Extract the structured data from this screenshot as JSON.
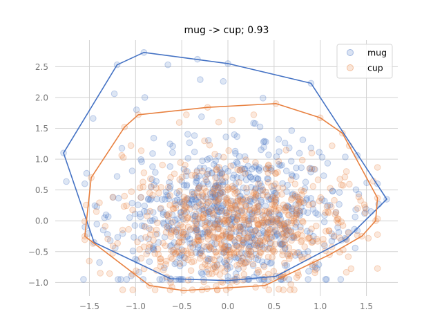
{
  "chart_data": {
    "type": "scatter",
    "title": "mug -> cup; 0.93",
    "xlabel": "",
    "ylabel": "",
    "xlim": [
      -1.87,
      1.84
    ],
    "ylim": [
      -1.22,
      2.93
    ],
    "xticks": [
      -1.5,
      -1.0,
      -0.5,
      0.0,
      0.5,
      1.0,
      1.5
    ],
    "xtick_labels": [
      "−1.5",
      "−1.0",
      "−0.5",
      "0.0",
      "0.5",
      "1.0",
      "1.5"
    ],
    "yticks": [
      -1.0,
      -0.5,
      0.0,
      0.5,
      1.0,
      1.5,
      2.0,
      2.5
    ],
    "ytick_labels": [
      "−1.0",
      "−0.5",
      "0.0",
      "0.5",
      "1.0",
      "1.5",
      "2.0",
      "2.5"
    ],
    "grid": true,
    "legend_position": "upper right",
    "legend": [
      "mug",
      "cup"
    ],
    "series": [
      {
        "name": "mug",
        "color": "#4472c4",
        "hull": [
          [
            -1.78,
            1.1
          ],
          [
            -1.2,
            2.53
          ],
          [
            -0.91,
            2.73
          ],
          [
            0.0,
            2.55
          ],
          [
            0.9,
            2.23
          ],
          [
            1.72,
            0.35
          ],
          [
            1.28,
            -0.3
          ],
          [
            0.52,
            -0.9
          ],
          [
            0.0,
            -0.97
          ],
          [
            -0.62,
            -0.94
          ],
          [
            -1.45,
            -0.35
          ]
        ],
        "cluster": {
          "count": 720,
          "center": [
            0.05,
            0.1
          ],
          "spread": [
            0.62,
            0.58
          ],
          "x_range": [
            -1.75,
            1.7
          ],
          "y_range": [
            -0.95,
            2.7
          ]
        },
        "points": [
          [
            -1.78,
            1.1
          ],
          [
            -1.2,
            2.53
          ],
          [
            -0.91,
            2.73
          ],
          [
            0.0,
            2.55
          ],
          [
            0.9,
            2.23
          ],
          [
            1.72,
            0.35
          ],
          [
            -0.65,
            2.53
          ],
          [
            -0.33,
            2.62
          ],
          [
            -0.3,
            2.29
          ],
          [
            -0.05,
            2.26
          ],
          [
            -1.23,
            2.06
          ],
          [
            -1.46,
            1.66
          ],
          [
            -1.53,
            0.77
          ],
          [
            -1.55,
            0.6
          ],
          [
            -1.42,
            0.23
          ],
          [
            -1.35,
            -0.15
          ],
          [
            -1.45,
            -0.35
          ],
          [
            -0.9,
            2.0
          ],
          [
            -0.99,
            1.8
          ],
          [
            0.38,
            1.99
          ],
          [
            -1.2,
            0.72
          ],
          [
            1.62,
            0.6
          ],
          [
            1.55,
            0.15
          ],
          [
            1.48,
            0.12
          ],
          [
            1.28,
            -0.3
          ],
          [
            0.52,
            -0.9
          ],
          [
            0.0,
            -0.97
          ],
          [
            -0.62,
            -0.94
          ],
          [
            -0.2,
            -0.62
          ],
          [
            0.9,
            1.18
          ]
        ]
      },
      {
        "name": "cup",
        "color": "#e8803f",
        "hull": [
          [
            -1.55,
            -0.25
          ],
          [
            -1.48,
            0.7
          ],
          [
            -1.12,
            1.52
          ],
          [
            -0.97,
            1.72
          ],
          [
            -0.22,
            1.84
          ],
          [
            0.52,
            1.9
          ],
          [
            1.0,
            1.67
          ],
          [
            1.24,
            1.42
          ],
          [
            1.62,
            0.37
          ],
          [
            1.6,
            0.0
          ],
          [
            1.45,
            -0.25
          ],
          [
            1.1,
            -0.55
          ],
          [
            0.4,
            -1.05
          ],
          [
            -0.48,
            -1.13
          ],
          [
            -0.85,
            -1.05
          ]
        ],
        "cluster": {
          "count": 720,
          "center": [
            0.1,
            -0.05
          ],
          "spread": [
            0.6,
            0.52
          ],
          "x_range": [
            -1.55,
            1.62
          ],
          "y_range": [
            -1.12,
            1.88
          ]
        },
        "points": [
          [
            -1.55,
            -0.25
          ],
          [
            -1.48,
            0.7
          ],
          [
            -1.12,
            1.52
          ],
          [
            -0.97,
            1.72
          ],
          [
            -0.22,
            1.84
          ],
          [
            0.52,
            1.9
          ],
          [
            1.0,
            1.67
          ],
          [
            1.24,
            1.42
          ],
          [
            1.62,
            0.37
          ],
          [
            1.6,
            0.0
          ],
          [
            1.45,
            -0.25
          ],
          [
            1.1,
            -0.55
          ],
          [
            0.4,
            -1.05
          ],
          [
            -0.48,
            -1.13
          ],
          [
            -0.85,
            -1.05
          ],
          [
            -0.45,
            1.72
          ],
          [
            0.28,
            1.72
          ],
          [
            -0.1,
            1.6
          ],
          [
            -1.15,
            1.06
          ],
          [
            -1.05,
            1.22
          ],
          [
            1.23,
            0.58
          ],
          [
            -1.12,
            0.4
          ],
          [
            -0.15,
            -0.72
          ],
          [
            0.3,
            -0.45
          ]
        ]
      }
    ]
  }
}
